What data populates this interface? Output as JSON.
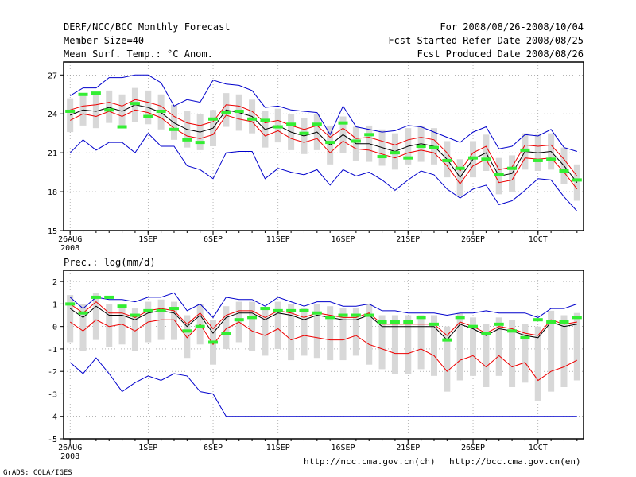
{
  "header": {
    "title": "DERF/NCC/BCC Monthly Forecast",
    "member_size": "Member Size=40",
    "variable": "Mean Surf. Temp.: °C Anom.",
    "period": "For 2008/08/26-2008/10/04",
    "started": "Fcst Started Refer Date 2008/08/25",
    "produced": "Fcst Produced Date 2008/08/26"
  },
  "footer": {
    "url_ch": "http://ncc.cma.gov.cn(ch)",
    "url_en": "http://bcc.cma.gov.cn(en)",
    "credit": "GrADS: COLA/IGES"
  },
  "colors": {
    "spread": "#d8d8d8",
    "extreme": "#0000cc",
    "quantile": "#ee0000",
    "mean": "#000000",
    "obs": "#33ee33",
    "grid": "#888888"
  },
  "chart_data": [
    {
      "type": "line",
      "title": "Mean Surf. Temp.: °C Anom.",
      "x_tick_labels": [
        "26AUG",
        "1SEP",
        "6SEP",
        "11SEP",
        "16SEP",
        "21SEP",
        "26SEP",
        "1OCT"
      ],
      "x_year_label": "2008",
      "x": [
        1,
        2,
        3,
        4,
        5,
        6,
        7,
        8,
        9,
        10,
        11,
        12,
        13,
        14,
        15,
        16,
        17,
        18,
        19,
        20,
        21,
        22,
        23,
        24,
        25,
        26,
        27,
        28,
        29,
        30,
        31,
        32,
        33,
        34,
        35,
        36,
        37,
        38,
        39,
        40
      ],
      "xlim": [
        0.5,
        40.5
      ],
      "ylim": [
        15,
        28
      ],
      "y_ticks": [
        15,
        18,
        21,
        24,
        27
      ],
      "grid": true,
      "series": [
        {
          "name": "max",
          "values": [
            21.0,
            22.0,
            21.2,
            21.8,
            21.8,
            21.0,
            22.5,
            21.5,
            21.5,
            20.0,
            19.7,
            19.0,
            21.0,
            21.1,
            21.1,
            19.0,
            19.8,
            19.5,
            19.3,
            19.7,
            18.5,
            19.7,
            19.2,
            19.5,
            18.9,
            18.1,
            18.9,
            19.6,
            19.3,
            18.2,
            17.5,
            18.2,
            18.5,
            17.0,
            17.3,
            18.1,
            19.0,
            18.9,
            17.6,
            16.5
          ]
        },
        {
          "name": "upper-quantile",
          "values": [
            23.5,
            24.0,
            23.8,
            24.2,
            23.8,
            24.3,
            24.1,
            23.7,
            22.9,
            22.3,
            22.1,
            22.4,
            23.9,
            23.6,
            23.4,
            22.3,
            22.7,
            22.1,
            21.8,
            22.1,
            21.0,
            21.9,
            21.3,
            21.2,
            20.9,
            20.6,
            21.0,
            21.2,
            21.0,
            20.0,
            18.6,
            20.0,
            20.5,
            18.7,
            18.9,
            20.6,
            20.5,
            20.6,
            19.5,
            18.2
          ]
        },
        {
          "name": "mean",
          "values": [
            23.9,
            24.3,
            24.2,
            24.5,
            24.2,
            24.7,
            24.5,
            24.1,
            23.3,
            22.8,
            22.6,
            22.9,
            24.3,
            24.1,
            23.8,
            22.8,
            23.1,
            22.6,
            22.3,
            22.6,
            21.6,
            22.4,
            21.7,
            21.7,
            21.4,
            21.1,
            21.5,
            21.7,
            21.5,
            20.5,
            19.1,
            20.5,
            21.0,
            19.2,
            19.4,
            21.1,
            21.0,
            21.1,
            20.0,
            18.7
          ]
        },
        {
          "name": "lower-quantile",
          "values": [
            24.3,
            24.6,
            24.7,
            24.9,
            24.6,
            25.1,
            24.9,
            24.6,
            23.8,
            23.3,
            23.1,
            23.4,
            24.7,
            24.6,
            24.2,
            23.3,
            23.5,
            23.1,
            22.8,
            23.1,
            22.2,
            22.9,
            22.1,
            22.2,
            21.9,
            21.6,
            22.0,
            22.2,
            22.0,
            21.0,
            19.6,
            21.0,
            21.5,
            19.7,
            19.9,
            21.6,
            21.5,
            21.6,
            20.5,
            19.2
          ]
        },
        {
          "name": "min",
          "values": [
            25.4,
            26.0,
            26.0,
            26.8,
            26.8,
            27.0,
            27.0,
            26.4,
            24.6,
            25.1,
            24.9,
            26.6,
            26.3,
            26.2,
            25.8,
            24.5,
            24.6,
            24.3,
            24.2,
            24.1,
            22.4,
            24.6,
            23.0,
            22.8,
            22.6,
            22.7,
            23.1,
            23.0,
            22.6,
            22.2,
            21.8,
            22.6,
            23.0,
            21.3,
            21.5,
            22.4,
            22.3,
            22.8,
            21.4,
            21.1
          ]
        },
        {
          "name": "observed",
          "values": [
            24.2,
            25.5,
            25.6,
            24.3,
            23.0,
            24.8,
            23.8,
            24.2,
            22.8,
            22.0,
            21.8,
            23.6,
            24.1,
            24.2,
            23.6,
            23.5,
            23.0,
            23.2,
            22.5,
            23.2,
            21.8,
            23.3,
            21.9,
            22.4,
            20.7,
            21.0,
            20.6,
            21.5,
            21.4,
            20.4,
            19.8,
            20.6,
            20.5,
            19.3,
            19.8,
            21.2,
            20.4,
            20.5,
            19.6,
            18.9
          ]
        }
      ]
    },
    {
      "type": "line",
      "title": "Prec.: log(mm/d)",
      "x_tick_labels": [
        "26AUG",
        "1SEP",
        "6SEP",
        "11SEP",
        "16SEP",
        "21SEP",
        "26SEP",
        "1OCT"
      ],
      "x_year_label": "2008",
      "x": [
        1,
        2,
        3,
        4,
        5,
        6,
        7,
        8,
        9,
        10,
        11,
        12,
        13,
        14,
        15,
        16,
        17,
        18,
        19,
        20,
        21,
        22,
        23,
        24,
        25,
        26,
        27,
        28,
        29,
        30,
        31,
        32,
        33,
        34,
        35,
        36,
        37,
        38,
        39,
        40
      ],
      "xlim": [
        0.5,
        40.5
      ],
      "ylim": [
        -5,
        2.5
      ],
      "y_ticks": [
        -5,
        -4,
        -3,
        -2,
        -1,
        0,
        1,
        2
      ],
      "grid": true,
      "series": [
        {
          "name": "max",
          "values": [
            1.3,
            0.8,
            1.3,
            1.2,
            1.2,
            1.1,
            1.3,
            1.3,
            1.5,
            0.7,
            1.0,
            0.4,
            1.3,
            1.2,
            1.2,
            0.9,
            1.3,
            1.1,
            0.9,
            1.1,
            1.1,
            0.9,
            0.9,
            1.0,
            0.7,
            0.7,
            0.6,
            0.6,
            0.6,
            0.5,
            0.6,
            0.6,
            0.7,
            0.6,
            0.6,
            0.6,
            0.4,
            0.8,
            0.8,
            1.0
          ]
        },
        {
          "name": "upper-quantile",
          "values": [
            1.0,
            0.6,
            1.1,
            0.6,
            0.6,
            0.4,
            0.7,
            0.8,
            0.7,
            0.1,
            0.6,
            -0.1,
            0.5,
            0.7,
            0.7,
            0.4,
            0.7,
            0.6,
            0.4,
            0.6,
            0.5,
            0.4,
            0.4,
            0.6,
            0.1,
            0.1,
            0.1,
            0.1,
            0.1,
            -0.4,
            0.2,
            0.0,
            -0.3,
            0.0,
            -0.1,
            -0.3,
            -0.4,
            0.3,
            0.1,
            0.2
          ]
        },
        {
          "name": "mean",
          "values": [
            0.8,
            0.4,
            0.9,
            0.5,
            0.5,
            0.3,
            0.6,
            0.7,
            0.6,
            0.0,
            0.5,
            -0.3,
            0.4,
            0.6,
            0.6,
            0.3,
            0.6,
            0.5,
            0.3,
            0.5,
            0.4,
            0.3,
            0.3,
            0.5,
            0.0,
            0.0,
            0.0,
            0.0,
            0.0,
            -0.6,
            0.1,
            -0.1,
            -0.4,
            -0.1,
            -0.2,
            -0.4,
            -0.5,
            0.2,
            0.0,
            0.1
          ]
        },
        {
          "name": "lower-quantile",
          "values": [
            0.2,
            -0.2,
            0.3,
            0.0,
            0.1,
            -0.2,
            0.2,
            0.3,
            0.3,
            -0.5,
            0.1,
            -0.8,
            -0.1,
            0.2,
            -0.2,
            -0.4,
            -0.1,
            -0.6,
            -0.4,
            -0.5,
            -0.6,
            -0.6,
            -0.4,
            -0.8,
            -1.0,
            -1.2,
            -1.2,
            -1.0,
            -1.3,
            -2.0,
            -1.5,
            -1.3,
            -1.8,
            -1.3,
            -1.8,
            -1.6,
            -2.4,
            -2.0,
            -1.8,
            -1.5
          ]
        },
        {
          "name": "min",
          "values": [
            -1.6,
            -2.1,
            -1.4,
            -2.1,
            -2.9,
            -2.5,
            -2.2,
            -2.4,
            -2.1,
            -2.2,
            -2.9,
            -3.0,
            -4.0,
            -4.0,
            -4.0,
            -4.0,
            -4.0,
            -4.0,
            -4.0,
            -4.0,
            -4.0,
            -4.0,
            -4.0,
            -4.0,
            -4.0,
            -4.0,
            -4.0,
            -4.0,
            -4.0,
            -4.0,
            -4.0,
            -4.0,
            -4.0,
            -4.0,
            -4.0,
            -4.0,
            -4.0,
            -4.0,
            -4.0,
            -4.0
          ]
        },
        {
          "name": "observed",
          "values": [
            1.0,
            0.6,
            1.3,
            1.3,
            0.9,
            0.5,
            0.7,
            0.7,
            0.8,
            -0.2,
            0.0,
            -0.7,
            -0.3,
            0.3,
            0.4,
            0.8,
            0.7,
            0.7,
            0.7,
            0.6,
            0.4,
            0.5,
            0.5,
            0.5,
            0.2,
            0.2,
            0.2,
            0.4,
            0.1,
            -0.6,
            0.4,
            0.0,
            -0.3,
            0.1,
            -0.2,
            -0.5,
            0.3,
            0.2,
            0.2,
            0.4
          ]
        }
      ]
    }
  ]
}
